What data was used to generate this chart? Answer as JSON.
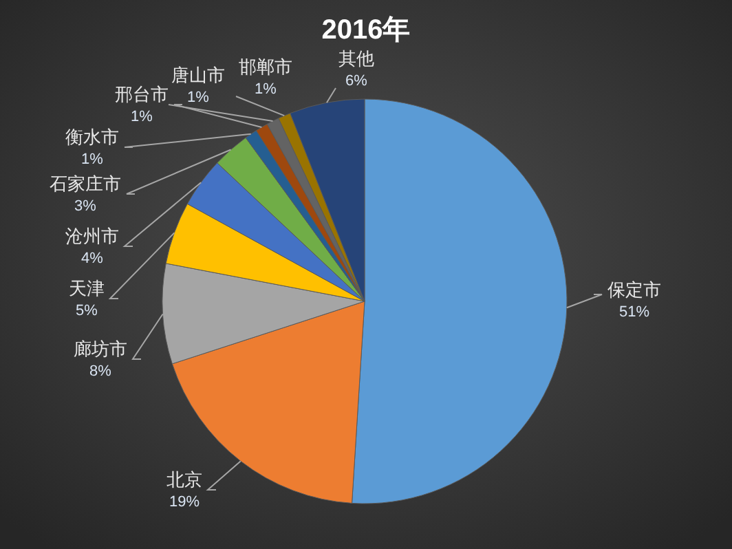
{
  "chart_data": {
    "type": "pie",
    "title": "2016年",
    "categories": [
      "保定市",
      "北京",
      "廊坊市",
      "天津",
      "沧州市",
      "石家庄市",
      "衡水市",
      "邢台市",
      "唐山市",
      "邯郸市",
      "其他"
    ],
    "values": [
      51,
      19,
      8,
      5,
      4,
      3,
      1,
      1,
      1,
      1,
      6
    ],
    "colors": [
      "#5b9bd5",
      "#ed7d31",
      "#a5a5a5",
      "#ffc000",
      "#4472c4",
      "#70ad47",
      "#255e91",
      "#9e480e",
      "#636363",
      "#997300",
      "#264478"
    ],
    "value_labels": [
      "51%",
      "19%",
      "8%",
      "5%",
      "4%",
      "3%",
      "1%",
      "1%",
      "1%",
      "1%",
      "6%"
    ]
  }
}
